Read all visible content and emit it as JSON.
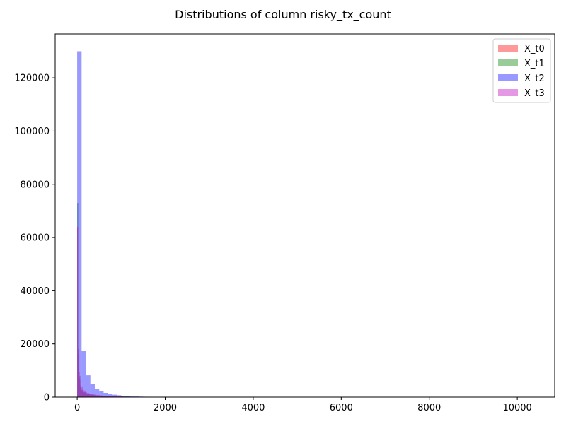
{
  "chart_data": {
    "type": "bar",
    "subtype": "overlaid-histogram",
    "title": "Distributions of column risky_tx_count",
    "xlabel": "",
    "ylabel": "",
    "xlim": [
      -500,
      10850
    ],
    "ylim": [
      0,
      136500
    ],
    "x_ticks": [
      0,
      2000,
      4000,
      6000,
      8000,
      10000
    ],
    "y_ticks": [
      0,
      20000,
      40000,
      60000,
      80000,
      100000,
      120000
    ],
    "grid": false,
    "legend_position": "top-right",
    "series": [
      {
        "name": "X_t0",
        "color": "#ff0000",
        "opacity": 0.4,
        "bins": [
          {
            "x0": 0,
            "x1": 21,
            "value": 64000
          },
          {
            "x0": 21,
            "x1": 42,
            "value": 16000
          },
          {
            "x0": 42,
            "x1": 63,
            "value": 7000
          },
          {
            "x0": 63,
            "x1": 84,
            "value": 4000
          },
          {
            "x0": 84,
            "x1": 126,
            "value": 2500
          },
          {
            "x0": 126,
            "x1": 189,
            "value": 1700
          },
          {
            "x0": 189,
            "x1": 273,
            "value": 1200
          },
          {
            "x0": 273,
            "x1": 378,
            "value": 900
          },
          {
            "x0": 378,
            "x1": 525,
            "value": 600
          },
          {
            "x0": 525,
            "x1": 735,
            "value": 400
          },
          {
            "x0": 735,
            "x1": 1050,
            "value": 250
          },
          {
            "x0": 1050,
            "x1": 1400,
            "value": 120
          }
        ]
      },
      {
        "name": "X_t1",
        "color": "#008000",
        "opacity": 0.4,
        "bins": [
          {
            "x0": 0,
            "x1": 24,
            "value": 73000
          },
          {
            "x0": 24,
            "x1": 48,
            "value": 18000
          },
          {
            "x0": 48,
            "x1": 72,
            "value": 8000
          },
          {
            "x0": 72,
            "x1": 96,
            "value": 4500
          },
          {
            "x0": 96,
            "x1": 144,
            "value": 2800
          },
          {
            "x0": 144,
            "x1": 216,
            "value": 1900
          },
          {
            "x0": 216,
            "x1": 312,
            "value": 1300
          },
          {
            "x0": 312,
            "x1": 432,
            "value": 900
          },
          {
            "x0": 432,
            "x1": 600,
            "value": 600
          },
          {
            "x0": 600,
            "x1": 840,
            "value": 400
          },
          {
            "x0": 840,
            "x1": 1200,
            "value": 250
          },
          {
            "x0": 1200,
            "x1": 1600,
            "value": 120
          }
        ]
      },
      {
        "name": "X_t2",
        "color": "#0000ff",
        "opacity": 0.4,
        "bins": [
          {
            "x0": 0,
            "x1": 100,
            "value": 130000
          },
          {
            "x0": 100,
            "x1": 200,
            "value": 17500
          },
          {
            "x0": 200,
            "x1": 300,
            "value": 8200
          },
          {
            "x0": 300,
            "x1": 400,
            "value": 4800
          },
          {
            "x0": 400,
            "x1": 500,
            "value": 3100
          },
          {
            "x0": 500,
            "x1": 600,
            "value": 2300
          },
          {
            "x0": 600,
            "x1": 700,
            "value": 1600
          },
          {
            "x0": 700,
            "x1": 800,
            "value": 1100
          },
          {
            "x0": 800,
            "x1": 900,
            "value": 900
          },
          {
            "x0": 900,
            "x1": 1000,
            "value": 700
          },
          {
            "x0": 1000,
            "x1": 1100,
            "value": 500
          },
          {
            "x0": 1100,
            "x1": 1200,
            "value": 400
          },
          {
            "x0": 1200,
            "x1": 1300,
            "value": 350
          },
          {
            "x0": 1300,
            "x1": 1400,
            "value": 250
          },
          {
            "x0": 1400,
            "x1": 1500,
            "value": 200
          },
          {
            "x0": 1500,
            "x1": 1600,
            "value": 150
          },
          {
            "x0": 1600,
            "x1": 1700,
            "value": 120
          },
          {
            "x0": 1700,
            "x1": 1800,
            "value": 100
          },
          {
            "x0": 1800,
            "x1": 1900,
            "value": 80
          },
          {
            "x0": 1900,
            "x1": 2000,
            "value": 60
          },
          {
            "x0": 2000,
            "x1": 2100,
            "value": 40
          },
          {
            "x0": 2100,
            "x1": 2200,
            "value": 30
          }
        ]
      },
      {
        "name": "X_t3",
        "color": "#cc33cc",
        "opacity": 0.5,
        "bins": [
          {
            "x0": 0,
            "x1": 21,
            "value": 64000
          },
          {
            "x0": 21,
            "x1": 42,
            "value": 18000
          },
          {
            "x0": 42,
            "x1": 63,
            "value": 9500
          },
          {
            "x0": 63,
            "x1": 84,
            "value": 6500
          },
          {
            "x0": 84,
            "x1": 126,
            "value": 4000
          },
          {
            "x0": 126,
            "x1": 189,
            "value": 2500
          },
          {
            "x0": 189,
            "x1": 273,
            "value": 1600
          },
          {
            "x0": 273,
            "x1": 378,
            "value": 1100
          },
          {
            "x0": 378,
            "x1": 525,
            "value": 800
          },
          {
            "x0": 525,
            "x1": 735,
            "value": 500
          },
          {
            "x0": 735,
            "x1": 1050,
            "value": 300
          },
          {
            "x0": 1050,
            "x1": 1400,
            "value": 150
          }
        ]
      }
    ]
  }
}
